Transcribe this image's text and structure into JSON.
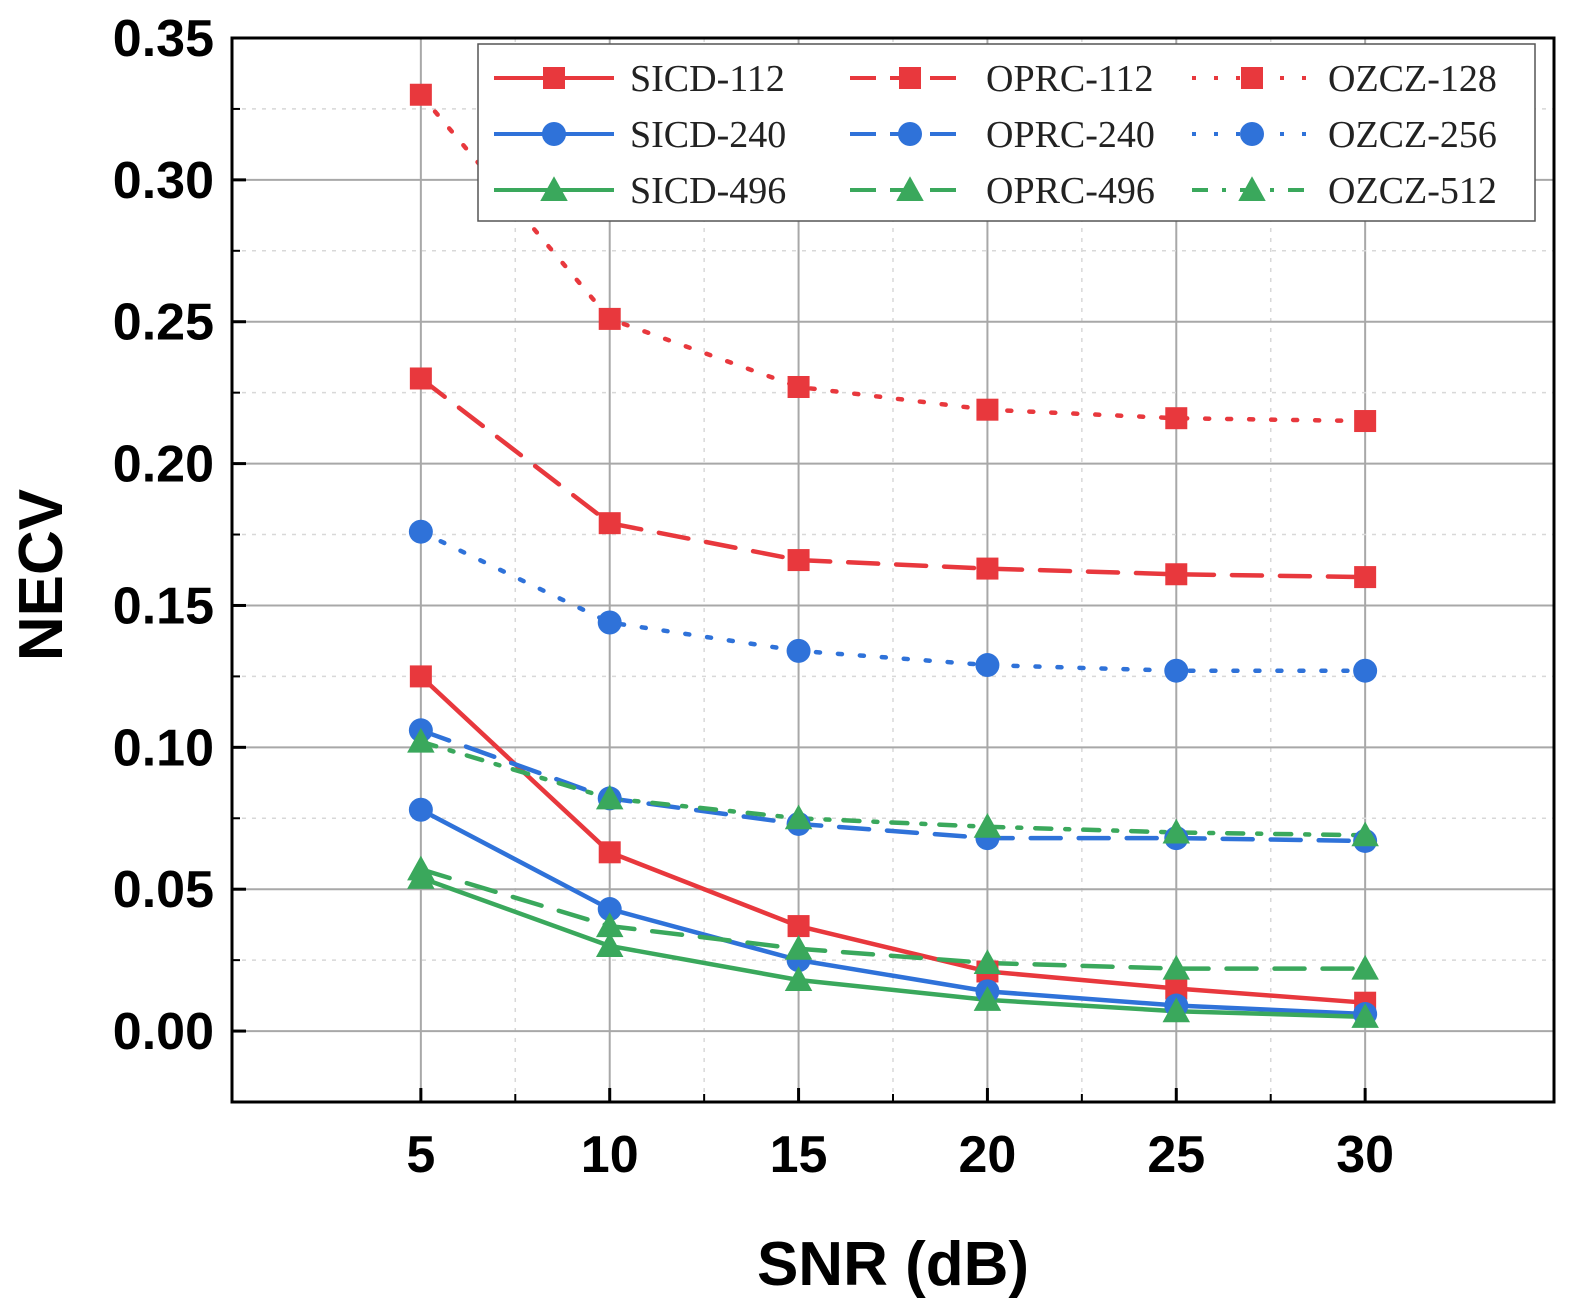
{
  "chart_data": {
    "type": "line",
    "title": "",
    "xlabel": "SNR (dB)",
    "ylabel": "NECV",
    "x": [
      5,
      10,
      15,
      20,
      25,
      30
    ],
    "xlim": [
      0,
      35
    ],
    "ylim": [
      -0.025,
      0.35
    ],
    "xticks": [
      "5",
      "10",
      "15",
      "20",
      "25",
      "30"
    ],
    "xtick_values": [
      5,
      10,
      15,
      20,
      25,
      30
    ],
    "yticks": [
      "0.00",
      "0.05",
      "0.10",
      "0.15",
      "0.20",
      "0.25",
      "0.30",
      "0.35"
    ],
    "ytick_values": [
      0.0,
      0.05,
      0.1,
      0.15,
      0.2,
      0.25,
      0.3,
      0.35
    ],
    "grid": true,
    "legend_position": "top-right",
    "colors": {
      "red": "#e8383d",
      "blue": "#2f72d9",
      "green": "#3aa85c"
    },
    "series": [
      {
        "name": "SICD-112",
        "color": "#e8383d",
        "style": "solid",
        "marker": "square",
        "values": [
          0.125,
          0.063,
          0.037,
          0.021,
          0.015,
          0.01
        ]
      },
      {
        "name": "OPRC-112",
        "color": "#e8383d",
        "style": "dash",
        "marker": "square",
        "values": [
          0.23,
          0.179,
          0.166,
          0.163,
          0.161,
          0.16
        ]
      },
      {
        "name": "OZCZ-128",
        "color": "#e8383d",
        "style": "dot",
        "marker": "square",
        "values": [
          0.33,
          0.251,
          0.227,
          0.219,
          0.216,
          0.215
        ]
      },
      {
        "name": "SICD-240",
        "color": "#2f72d9",
        "style": "solid",
        "marker": "circle",
        "values": [
          0.078,
          0.043,
          0.025,
          0.014,
          0.009,
          0.006
        ]
      },
      {
        "name": "OPRC-240",
        "color": "#2f72d9",
        "style": "dash",
        "marker": "circle",
        "values": [
          0.106,
          0.082,
          0.073,
          0.068,
          0.068,
          0.067
        ]
      },
      {
        "name": "OZCZ-256",
        "color": "#2f72d9",
        "style": "dot",
        "marker": "circle",
        "values": [
          0.176,
          0.144,
          0.134,
          0.129,
          0.127,
          0.127
        ]
      },
      {
        "name": "SICD-496",
        "color": "#3aa85c",
        "style": "solid",
        "marker": "triangle",
        "values": [
          0.054,
          0.03,
          0.018,
          0.011,
          0.007,
          0.005
        ]
      },
      {
        "name": "OPRC-496",
        "color": "#3aa85c",
        "style": "dash",
        "marker": "triangle",
        "values": [
          0.057,
          0.037,
          0.029,
          0.024,
          0.022,
          0.022
        ]
      },
      {
        "name": "OZCZ-512",
        "color": "#3aa85c",
        "style": "dashdot",
        "marker": "triangle",
        "values": [
          0.102,
          0.082,
          0.075,
          0.072,
          0.07,
          0.069
        ]
      }
    ]
  }
}
